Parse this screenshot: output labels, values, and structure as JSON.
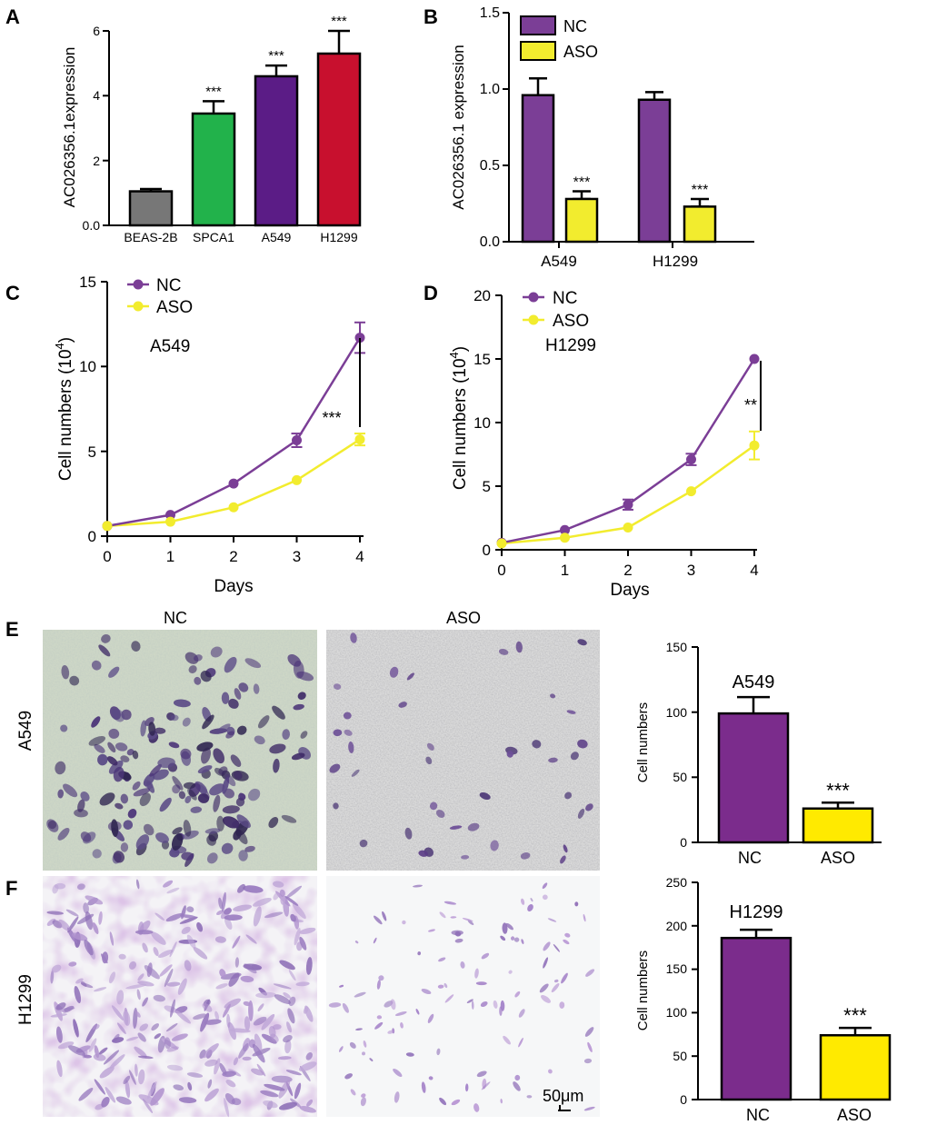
{
  "colors": {
    "nc": "#7B3E96",
    "aso": "#F2EC2E",
    "beas": "#777777",
    "spca1": "#22B24B",
    "a549": "#5B1C86",
    "h1299": "#C8102E",
    "bar_nc": "#7B2C8C",
    "bar_aso": "#FFEA00"
  },
  "image_labels": {
    "nc": "NC",
    "aso": "ASO",
    "row_a549": "A549",
    "row_h1299": "H1299",
    "scale_bar": "50μm"
  },
  "chart_data": [
    {
      "panel": "A",
      "type": "bar",
      "ylabel": "AC026356.1expression",
      "categories": [
        "BEAS-2B",
        "SPCA1",
        "A549",
        "H1299"
      ],
      "values": [
        1.05,
        3.45,
        4.6,
        5.3
      ],
      "errors": [
        0.07,
        0.38,
        0.33,
        0.7
      ],
      "colors": [
        "#777777",
        "#22B24B",
        "#5B1C86",
        "#C8102E"
      ],
      "sig": [
        "",
        "***",
        "***",
        "***"
      ],
      "ylim": [
        0,
        6
      ],
      "yticks": [
        "0.0",
        "2",
        "4",
        "6"
      ]
    },
    {
      "panel": "B",
      "type": "bar",
      "ylabel": "AC026356.1 expression",
      "categories": [
        "A549",
        "H1299"
      ],
      "series": [
        {
          "name": "NC",
          "color": "#7B3E96",
          "values": [
            0.96,
            0.93
          ],
          "errors": [
            0.11,
            0.05
          ],
          "sig": [
            "",
            ""
          ]
        },
        {
          "name": "ASO",
          "color": "#F2EC2E",
          "values": [
            0.28,
            0.23
          ],
          "errors": [
            0.05,
            0.05
          ],
          "sig": [
            "***",
            "***"
          ]
        }
      ],
      "ylim": [
        0,
        1.5
      ],
      "yticks": [
        "0.0",
        "0.5",
        "1.0",
        "1.5"
      ]
    },
    {
      "panel": "C",
      "type": "line",
      "title": "A549",
      "xlabel": "Days",
      "ylabel": "Cell numbers (10",
      "ylabel_sup": "4",
      "ylabel_tail": ")",
      "x": [
        0,
        1,
        2,
        3,
        4
      ],
      "series": [
        {
          "name": "NC",
          "color": "#7B3E96",
          "values": [
            0.6,
            1.25,
            3.1,
            5.65,
            11.7
          ],
          "errors": [
            0.05,
            0.1,
            0.15,
            0.4,
            0.9
          ]
        },
        {
          "name": "ASO",
          "color": "#F2EC2E",
          "values": [
            0.6,
            0.85,
            1.7,
            3.3,
            5.7
          ],
          "errors": [
            0.05,
            0.05,
            0.1,
            0.15,
            0.35
          ]
        }
      ],
      "sig": "***",
      "ylim": [
        0,
        15
      ],
      "yticks": [
        "0",
        "5",
        "10",
        "15"
      ],
      "xticks": [
        "0",
        "1",
        "2",
        "3",
        "4"
      ]
    },
    {
      "panel": "D",
      "type": "line",
      "title": "H1299",
      "xlabel": "Days",
      "ylabel": "Cell numbers (10",
      "ylabel_sup": "4",
      "ylabel_tail": ")",
      "x": [
        0,
        1,
        2,
        3,
        4
      ],
      "series": [
        {
          "name": "NC",
          "color": "#7B3E96",
          "values": [
            0.55,
            1.55,
            3.55,
            7.1,
            15.0
          ],
          "errors": [
            0.05,
            0.1,
            0.4,
            0.45,
            0.1
          ]
        },
        {
          "name": "ASO",
          "color": "#F2EC2E",
          "values": [
            0.5,
            0.95,
            1.75,
            4.6,
            8.2
          ],
          "errors": [
            0.05,
            0.05,
            0.1,
            0.15,
            1.1
          ]
        }
      ],
      "sig": "**",
      "ylim": [
        0,
        20
      ],
      "yticks": [
        "0",
        "5",
        "10",
        "15",
        "20"
      ],
      "xticks": [
        "0",
        "1",
        "2",
        "3",
        "4"
      ]
    },
    {
      "panel": "E",
      "type": "bar",
      "title": "A549",
      "ylabel": "Cell numbers",
      "categories": [
        "NC",
        "ASO"
      ],
      "values": [
        99,
        26
      ],
      "errors": [
        12.5,
        4.5
      ],
      "colors": [
        "#7B2C8C",
        "#FFEA00"
      ],
      "sig": [
        "",
        "***"
      ],
      "ylim": [
        0,
        150
      ],
      "yticks": [
        "0",
        "50",
        "100",
        "150"
      ]
    },
    {
      "panel": "F",
      "type": "bar",
      "title": "H1299",
      "ylabel": "Cell numbers",
      "categories": [
        "NC",
        "ASO"
      ],
      "values": [
        186,
        74
      ],
      "errors": [
        9.5,
        8.5
      ],
      "colors": [
        "#7B2C8C",
        "#FFEA00"
      ],
      "sig": [
        "",
        "***"
      ],
      "ylim": [
        0,
        250
      ],
      "yticks": [
        "0",
        "50",
        "100",
        "150",
        "200",
        "250"
      ]
    }
  ]
}
